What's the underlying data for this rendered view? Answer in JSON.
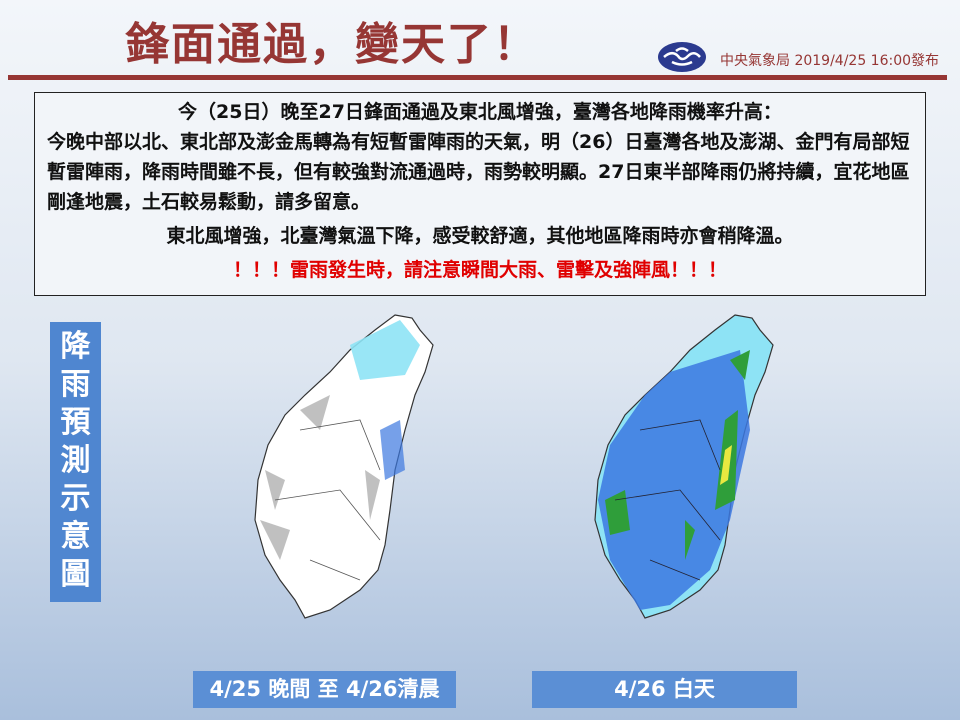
{
  "title": "鋒面通過，變天了！",
  "issuer": "中央氣象局 2019/4/25 16:00發布",
  "summary": {
    "lines": [
      "今（25日）晚至27日鋒面通過及東北風增強，臺灣各地降雨機率升高：",
      "今晚中部以北、東北部及澎金馬轉為有短暫雷陣雨的天氣，明（26）日臺灣各地及澎湖、金門有局部短暫雷陣雨，降雨時間雖不長，但有較強對流通過時，雨勢較明顯。27日東半部降雨仍將持續，宜花地區剛逢地震，土石較易鬆動，請多留意。",
      "東北風增強，北臺灣氣溫下降，感受較舒適，其他地區降雨時亦會稍降溫。",
      "！！！雷雨發生時，請注意瞬間大雨、雷擊及強陣風！！！"
    ]
  },
  "side_label": "降雨預測示意圖",
  "maps": [
    {
      "caption": "4/25 晚間 至 4/26清晨"
    },
    {
      "caption": "4/26 白天"
    }
  ],
  "colors": {
    "title": "#963634",
    "warning": "#e00000",
    "label_bg": "#4f86d0",
    "light_rain": "#8ee3f5",
    "moderate_rain": "#3c78e0",
    "heavy_rain": "#2f9e3a",
    "very_heavy": "#e8e840",
    "cloud": "#c0c0c0"
  }
}
